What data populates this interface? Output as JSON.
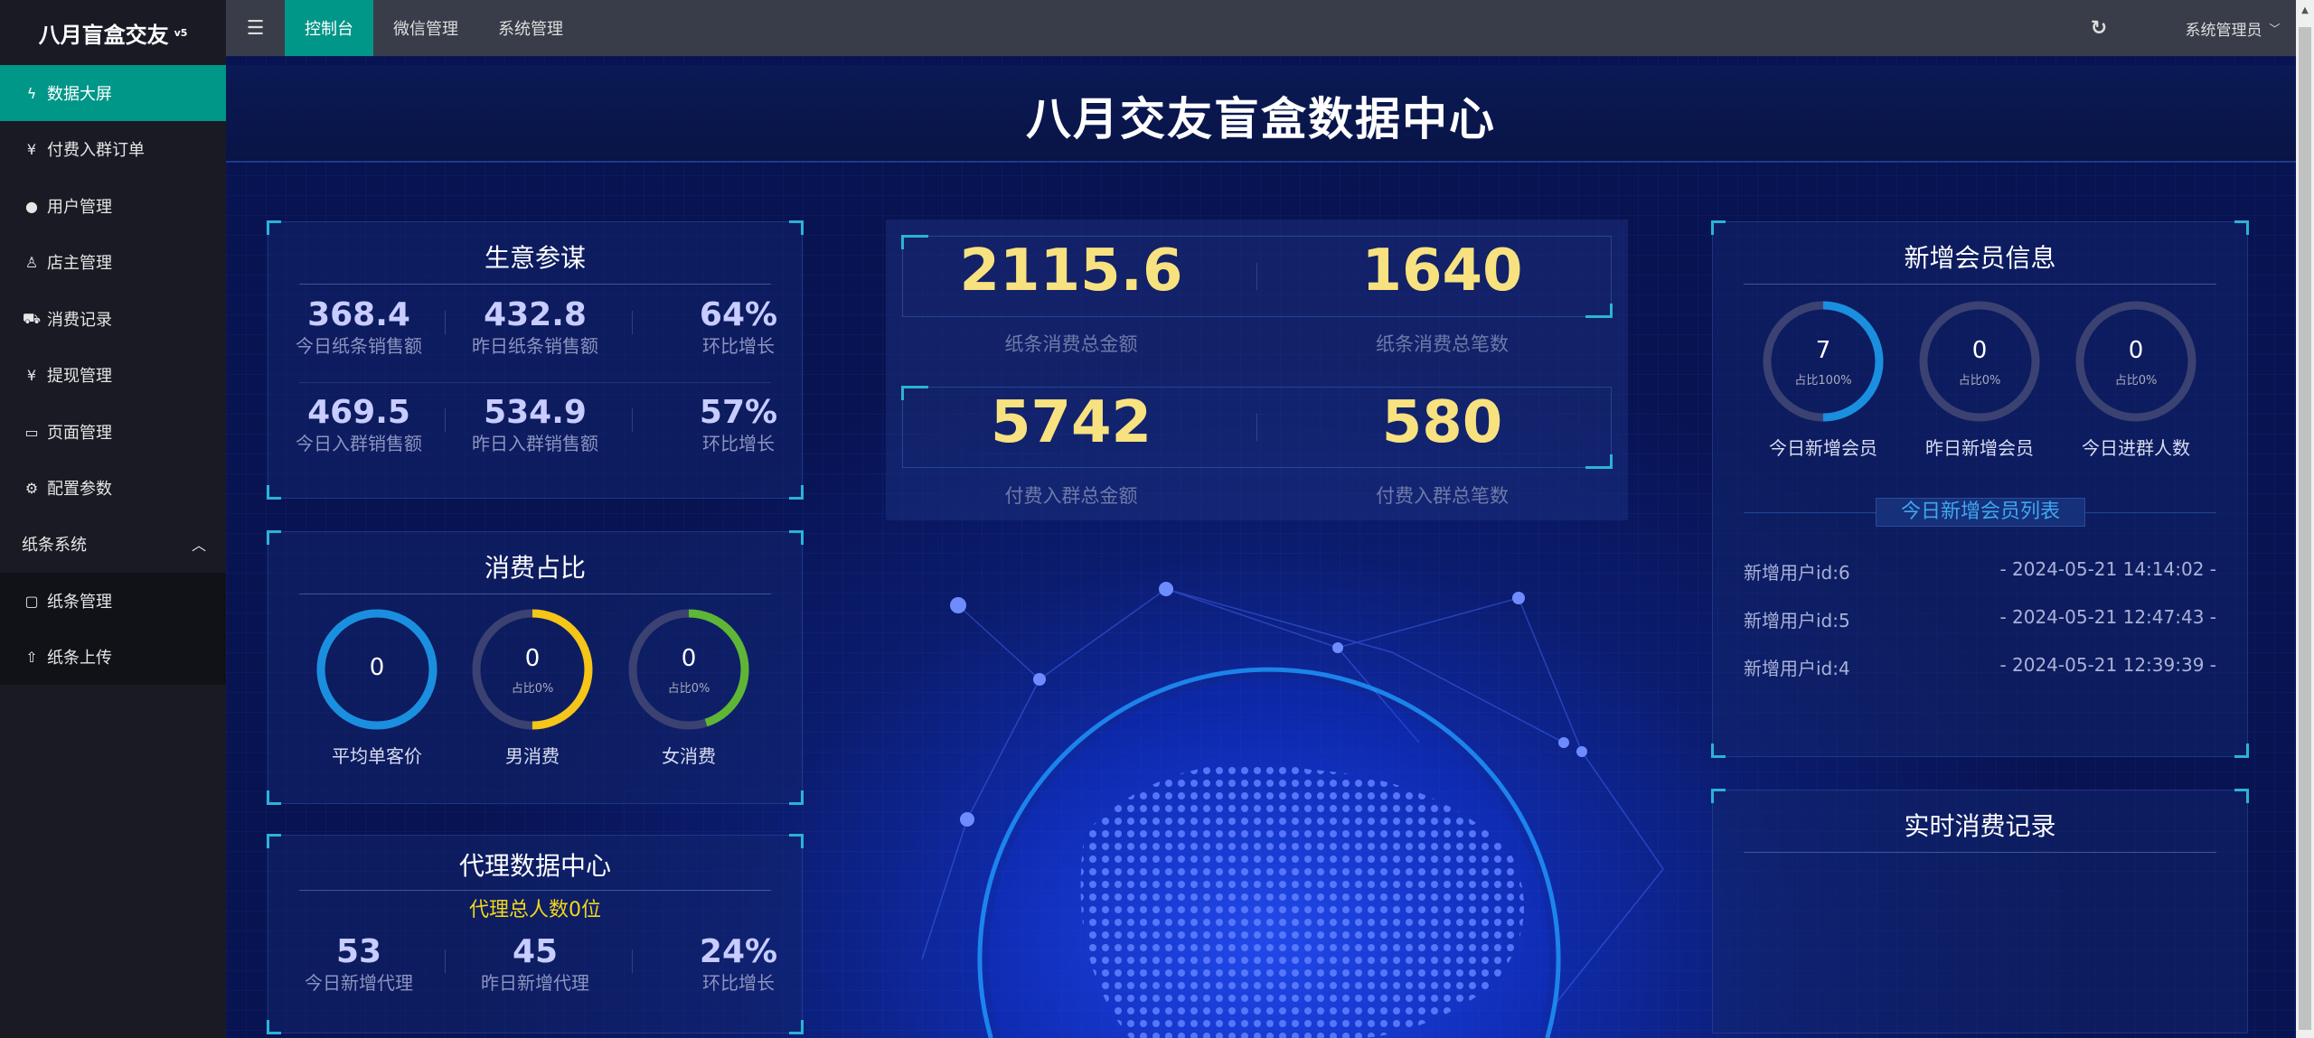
{
  "app": {
    "name": "八月盲盒交友",
    "version": "v5"
  },
  "sidebar": {
    "items": [
      {
        "label": "数据大屏",
        "icon": "lightning-icon",
        "active": true
      },
      {
        "label": "付费入群订单",
        "icon": "yen-circle-icon"
      },
      {
        "label": "用户管理",
        "icon": "user-icon"
      },
      {
        "label": "店主管理",
        "icon": "users-icon"
      },
      {
        "label": "消费记录",
        "icon": "cart-icon"
      },
      {
        "label": "提现管理",
        "icon": "yen-circle-icon"
      },
      {
        "label": "页面管理",
        "icon": "window-icon"
      },
      {
        "label": "配置参数",
        "icon": "gear-icon"
      }
    ],
    "group": {
      "label": "纸条系统",
      "expanded": true,
      "items": [
        {
          "label": "纸条管理",
          "icon": "note-icon"
        },
        {
          "label": "纸条上传",
          "icon": "upload-icon"
        }
      ]
    }
  },
  "topbar": {
    "tabs": [
      {
        "label": "控制台",
        "active": true
      },
      {
        "label": "微信管理"
      },
      {
        "label": "系统管理"
      }
    ],
    "user": "系统管理员",
    "accent": "#009688"
  },
  "dashboard": {
    "title": "八月交友盲盒数据中心",
    "business": {
      "title": "生意参谋",
      "rows": [
        [
          {
            "value": "368.4",
            "label": "今日纸条销售额"
          },
          {
            "value": "432.8",
            "label": "昨日纸条销售额"
          },
          {
            "value": "64%",
            "label": "环比增长"
          }
        ],
        [
          {
            "value": "469.5",
            "label": "今日入群销售额"
          },
          {
            "value": "534.9",
            "label": "昨日入群销售额"
          },
          {
            "value": "57%",
            "label": "环比增长"
          }
        ]
      ]
    },
    "consumption": {
      "title": "消费占比",
      "rings": [
        {
          "value": "0",
          "sub": "",
          "label": "平均单客价",
          "color": "#1a8fe0",
          "fill": 1
        },
        {
          "value": "0",
          "sub": "占比0%",
          "label": "男消费",
          "color": "#f5c518",
          "fill": 0.5
        },
        {
          "value": "0",
          "sub": "占比0%",
          "label": "女消费",
          "color": "#5fb636",
          "fill": 0.45
        }
      ]
    },
    "agent": {
      "title": "代理数据中心",
      "total": "代理总人数0位",
      "stats": [
        {
          "value": "53",
          "label": "今日新增代理"
        },
        {
          "value": "45",
          "label": "昨日新增代理"
        },
        {
          "value": "24%",
          "label": "环比增长"
        }
      ]
    },
    "center": [
      {
        "value": "2115.6",
        "label": "纸条消费总金额"
      },
      {
        "value": "1640",
        "label": "纸条消费总笔数"
      },
      {
        "value": "5742",
        "label": "付费入群总金额"
      },
      {
        "value": "580",
        "label": "付费入群总笔数"
      }
    ],
    "members": {
      "title": "新增会员信息",
      "rings": [
        {
          "value": "7",
          "sub": "占比100%",
          "label": "今日新增会员",
          "color": "#1a8fe0",
          "fill": 0.5
        },
        {
          "value": "0",
          "sub": "占比0%",
          "label": "昨日新增会员",
          "color": "#1a8fe0",
          "fill": 0
        },
        {
          "value": "0",
          "sub": "占比0%",
          "label": "今日进群人数",
          "color": "#1a8fe0",
          "fill": 0
        }
      ],
      "list_title": "今日新增会员列表",
      "list": [
        {
          "name": "新增用户id:6",
          "time": "- 2024-05-21 14:14:02 -"
        },
        {
          "name": "新增用户id:5",
          "time": "- 2024-05-21 12:47:43 -"
        },
        {
          "name": "新增用户id:4",
          "time": "- 2024-05-21 12:39:39 -"
        }
      ]
    },
    "realtime": {
      "title": "实时消费记录"
    }
  }
}
